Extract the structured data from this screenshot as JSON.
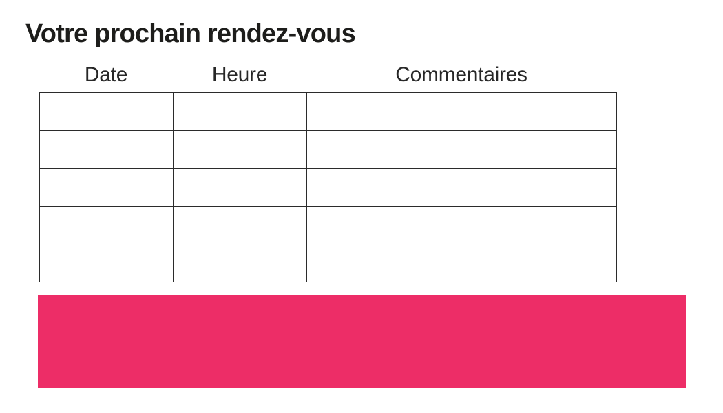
{
  "title": "Votre prochain rendez-vous",
  "table": {
    "headers": [
      "Date",
      "Heure",
      "Commentaires"
    ],
    "rows": [
      [
        "",
        "",
        ""
      ],
      [
        "",
        "",
        ""
      ],
      [
        "",
        "",
        ""
      ],
      [
        "",
        "",
        ""
      ],
      [
        "",
        "",
        ""
      ]
    ]
  },
  "banner": {
    "text": ""
  },
  "colors": {
    "accent_pink": "#ED2D67",
    "title_text": "#1d1d1b",
    "header_text": "#272727",
    "table_border": "#2b2b2b"
  }
}
